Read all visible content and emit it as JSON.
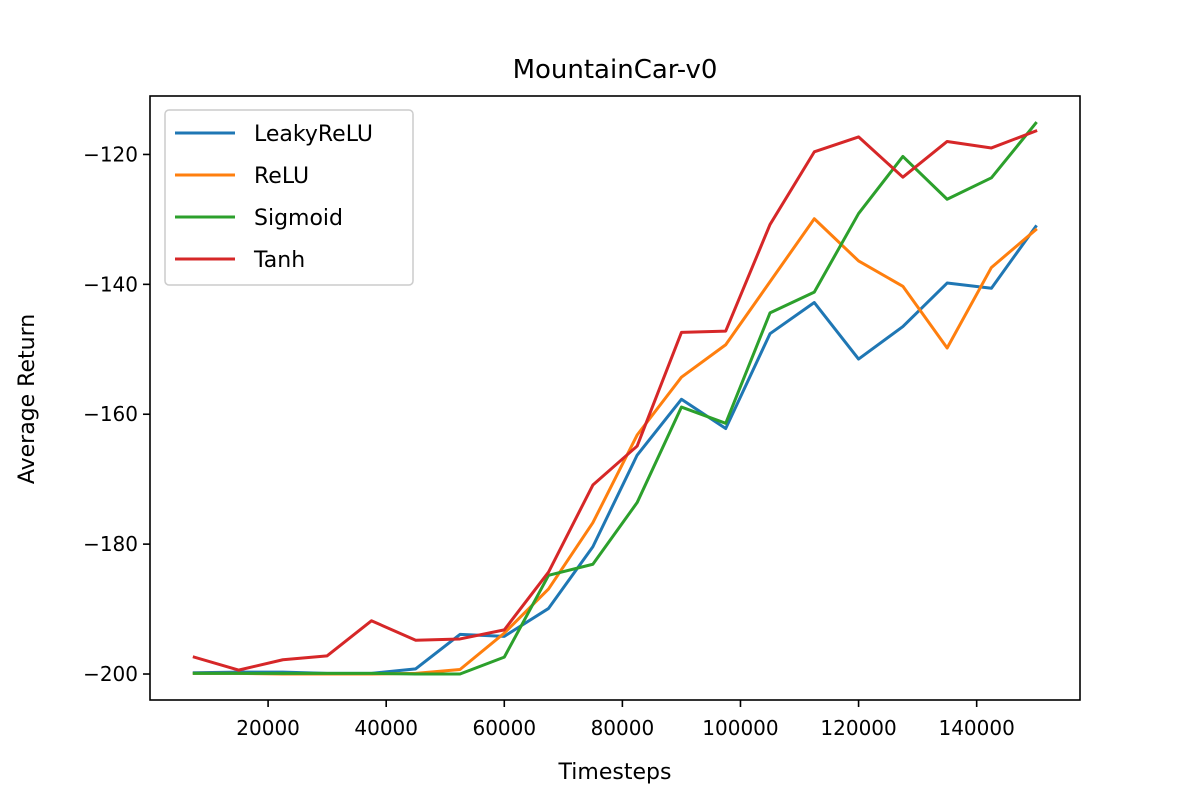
{
  "chart_data": {
    "type": "line",
    "title": "MountainCar-v0",
    "xlabel": "Timesteps",
    "ylabel": "Average Return",
    "xlim": [
      0,
      157500
    ],
    "ylim": [
      -204,
      -111
    ],
    "xticks": [
      20000,
      40000,
      60000,
      80000,
      100000,
      120000,
      140000
    ],
    "yticks": [
      -200,
      -180,
      -160,
      -140,
      -120
    ],
    "ytick_labels": [
      "−200",
      "−180",
      "−160",
      "−140",
      "−120"
    ],
    "grid": false,
    "legend_position": "upper-left",
    "x": [
      7500,
      15000,
      22500,
      30000,
      37500,
      45000,
      52500,
      60000,
      67500,
      75000,
      82500,
      90000,
      97500,
      105000,
      112500,
      120000,
      127500,
      135000,
      142500,
      150000
    ],
    "series": [
      {
        "name": "LeakyReLU",
        "color": "#1f77b4",
        "values": [
          -199.8,
          -199.7,
          -199.7,
          -199.9,
          -199.9,
          -199.2,
          -193.9,
          -194.2,
          -189.9,
          -180.4,
          -166.3,
          -157.7,
          -162.2,
          -147.6,
          -142.8,
          -151.5,
          -146.5,
          -139.8,
          -140.6,
          -131.1
        ]
      },
      {
        "name": "ReLU",
        "color": "#ff7f0e",
        "values": [
          -199.9,
          -199.9,
          -200.0,
          -200.0,
          -200.0,
          -199.9,
          -199.3,
          -193.7,
          -186.9,
          -176.7,
          -163.2,
          -154.3,
          -149.3,
          -139.6,
          -129.9,
          -136.4,
          -140.3,
          -149.8,
          -137.4,
          -131.6
        ]
      },
      {
        "name": "Sigmoid",
        "color": "#2ca02c",
        "values": [
          -199.9,
          -199.9,
          -199.9,
          -199.9,
          -199.9,
          -200.0,
          -200.0,
          -197.4,
          -184.8,
          -183.1,
          -173.6,
          -158.9,
          -161.4,
          -144.4,
          -141.2,
          -129.1,
          -120.3,
          -126.9,
          -123.6,
          -115.2
        ]
      },
      {
        "name": "Tanh",
        "color": "#d62728",
        "values": [
          -197.4,
          -199.4,
          -197.8,
          -197.2,
          -191.8,
          -194.8,
          -194.6,
          -193.2,
          -184.3,
          -170.9,
          -164.9,
          -147.4,
          -147.2,
          -130.8,
          -119.6,
          -117.3,
          -123.5,
          -118.0,
          -119.0,
          -116.4
        ]
      }
    ]
  }
}
